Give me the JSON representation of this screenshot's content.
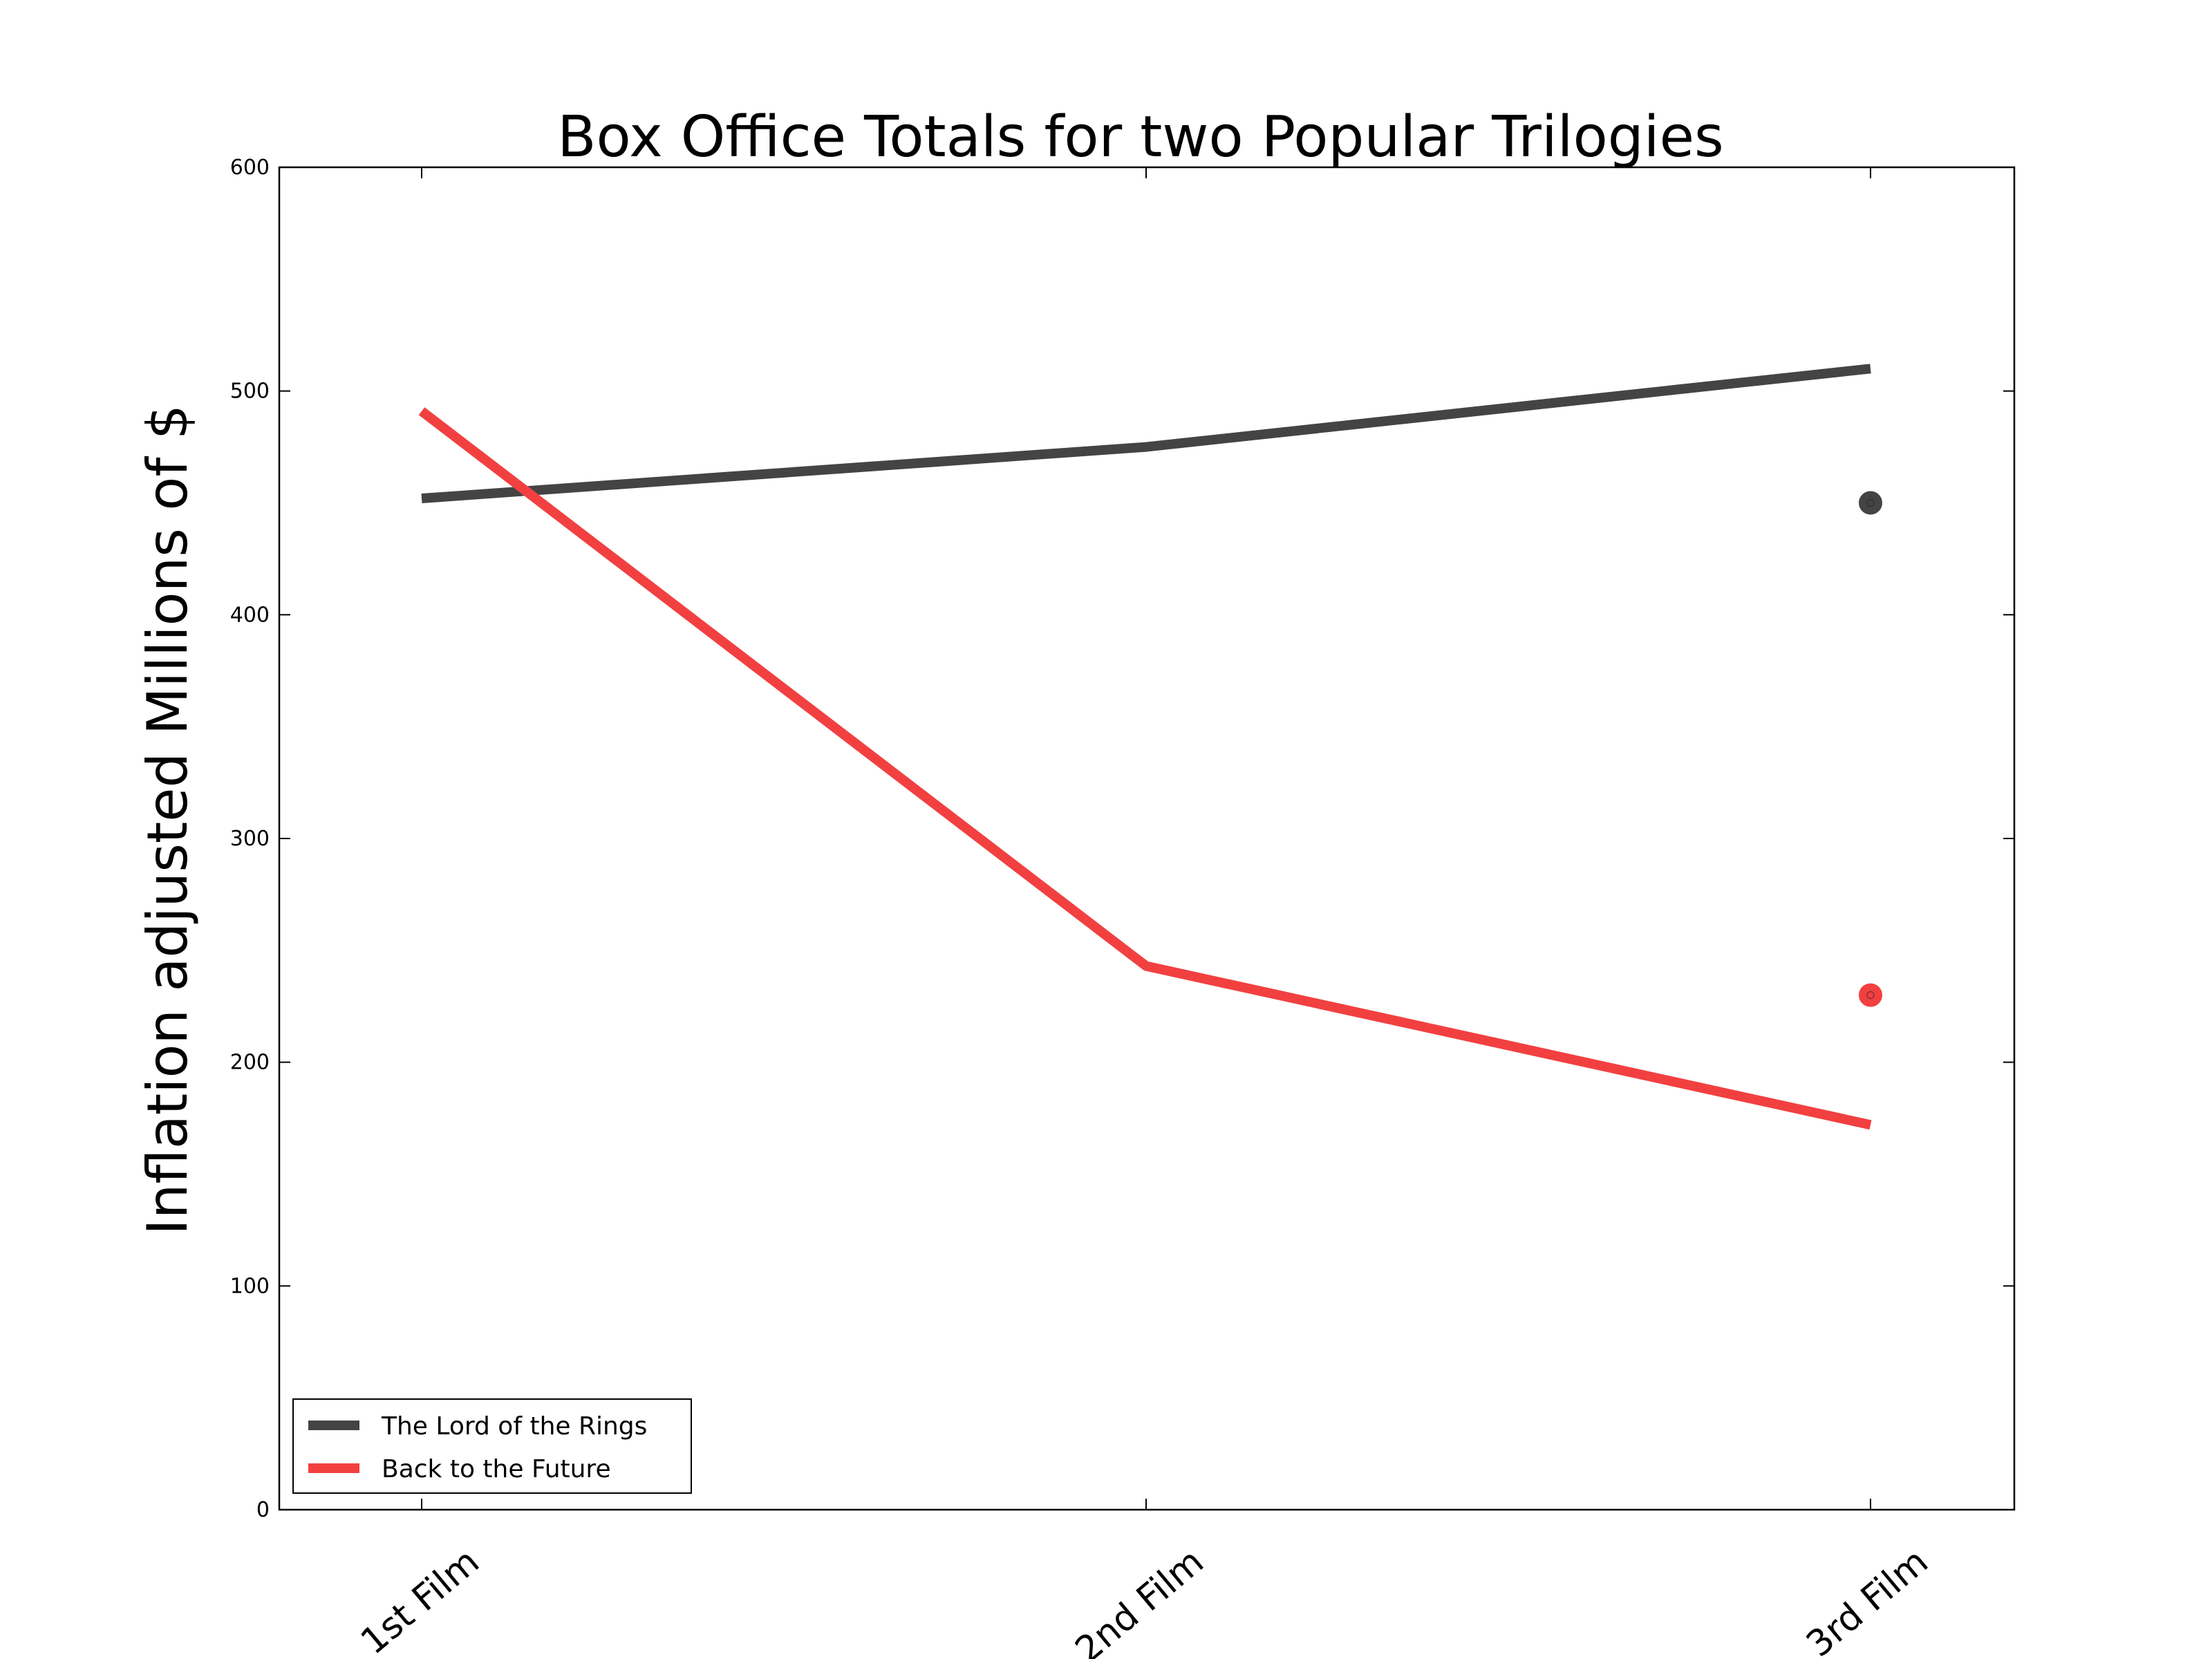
{
  "chart_data": {
    "type": "line",
    "title": "Box Office Totals for two Popular Trilogies",
    "xlabel": "",
    "ylabel": "Inflation adjusted Millions of $",
    "categories": [
      "1st Film",
      "2nd Film",
      "3rd Film"
    ],
    "ylim": [
      0,
      600
    ],
    "yticks": [
      "0",
      "100",
      "200",
      "300",
      "400",
      "500",
      "600"
    ],
    "grid": false,
    "legend_position": "lower-left",
    "series": [
      {
        "name": "The Lord of the Rings",
        "color": "#444444",
        "values": [
          452,
          475,
          510
        ],
        "marker": {
          "x": "3rd Film",
          "y": 450
        }
      },
      {
        "name": "Back to the Future",
        "color": "#f24040",
        "values": [
          491,
          243,
          172
        ],
        "marker": {
          "x": "3rd Film",
          "y": 230
        }
      }
    ]
  }
}
